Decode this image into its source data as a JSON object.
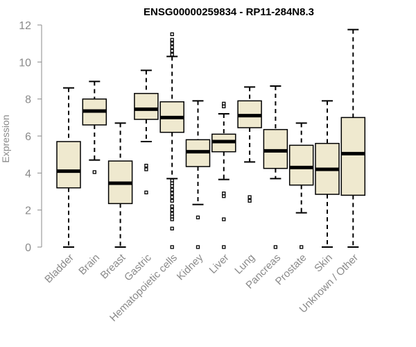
{
  "chart_data": {
    "type": "boxplot",
    "title": "ENSG00000259834 - RP11-284N8.3",
    "xlabel": "",
    "ylabel": "Expression",
    "ylim": [
      0,
      12
    ],
    "yticks": [
      0,
      2,
      4,
      6,
      8,
      10,
      12
    ],
    "categories": [
      "Bladder",
      "Brain",
      "Breast",
      "Gastric",
      "Hematopoietic cells",
      "Kidney",
      "Liver",
      "Lung",
      "Pancreas",
      "Prostate",
      "Skin",
      "Unknown / Other"
    ],
    "boxes": [
      {
        "name": "Bladder",
        "whisker_low": 0.0,
        "q1": 3.2,
        "median": 4.1,
        "q3": 5.7,
        "whisker_high": 8.6,
        "outliers": []
      },
      {
        "name": "Brain",
        "whisker_low": 4.7,
        "q1": 6.6,
        "median": 7.35,
        "q3": 8.0,
        "whisker_high": 8.95,
        "outliers": [
          4.05
        ]
      },
      {
        "name": "Breast",
        "whisker_low": 0.0,
        "q1": 2.35,
        "median": 3.45,
        "q3": 4.65,
        "whisker_high": 6.7,
        "outliers": []
      },
      {
        "name": "Gastric",
        "whisker_low": 5.7,
        "q1": 6.9,
        "median": 7.45,
        "q3": 8.3,
        "whisker_high": 9.55,
        "outliers": [
          4.4,
          4.2,
          2.95
        ]
      },
      {
        "name": "Hematopoietic cells",
        "whisker_low": 3.7,
        "q1": 6.2,
        "median": 7.0,
        "q3": 7.85,
        "whisker_high": 10.3,
        "outliers": [
          11.5,
          11.2,
          11.0,
          10.8,
          10.6,
          10.4,
          3.6,
          3.45,
          3.3,
          3.1,
          2.9,
          2.7,
          2.5,
          2.2,
          2.0,
          1.8,
          1.65,
          1.5,
          1.0,
          0.0
        ]
      },
      {
        "name": "Kidney",
        "whisker_low": 2.3,
        "q1": 4.35,
        "median": 5.15,
        "q3": 5.8,
        "whisker_high": 7.9,
        "outliers": [
          1.6,
          0.0
        ]
      },
      {
        "name": "Liver",
        "whisker_low": 3.65,
        "q1": 5.15,
        "median": 5.7,
        "q3": 6.1,
        "whisker_high": 7.2,
        "outliers": [
          7.75,
          7.6,
          2.9,
          2.75,
          1.5,
          0.0
        ]
      },
      {
        "name": "Lung",
        "whisker_low": 4.6,
        "q1": 6.45,
        "median": 7.1,
        "q3": 7.9,
        "whisker_high": 8.65,
        "outliers": [
          2.7,
          2.5
        ]
      },
      {
        "name": "Pancreas",
        "whisker_low": 3.7,
        "q1": 4.25,
        "median": 5.2,
        "q3": 6.35,
        "whisker_high": 8.7,
        "outliers": [
          0.0
        ]
      },
      {
        "name": "Prostate",
        "whisker_low": 1.85,
        "q1": 3.35,
        "median": 4.3,
        "q3": 5.5,
        "whisker_high": 6.7,
        "outliers": [
          0.0
        ]
      },
      {
        "name": "Skin",
        "whisker_low": 0.0,
        "q1": 2.85,
        "median": 4.2,
        "q3": 5.6,
        "whisker_high": 7.9,
        "outliers": []
      },
      {
        "name": "Unknown / Other",
        "whisker_low": 0.0,
        "q1": 2.8,
        "median": 5.05,
        "q3": 7.0,
        "whisker_high": 11.75,
        "outliers": []
      }
    ],
    "colors": {
      "box_fill": "#efe9cf",
      "box_stroke": "#000000",
      "axis": "#8a8a8a",
      "text": "#8a8a8a",
      "title": "#000000"
    },
    "grid": false,
    "legend": "none"
  }
}
